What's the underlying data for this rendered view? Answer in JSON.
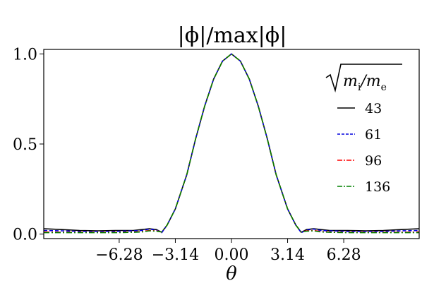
{
  "chart_data": {
    "type": "line",
    "title": "|ϕ|/max|ϕ|",
    "xlabel": "θ",
    "ylabel": "",
    "xlim": [
      -10.5,
      10.5
    ],
    "ylim": [
      -0.025,
      1.025
    ],
    "x_ticks": [
      {
        "value": -6.28,
        "label": "−6.28"
      },
      {
        "value": -3.14,
        "label": "−3.14"
      },
      {
        "value": 0.0,
        "label": "0.00"
      },
      {
        "value": 3.14,
        "label": "3.14"
      },
      {
        "value": 6.28,
        "label": "6.28"
      }
    ],
    "y_ticks": [
      {
        "value": 0.0,
        "label": "0.0"
      },
      {
        "value": 0.5,
        "label": "0.5"
      },
      {
        "value": 1.0,
        "label": "1.0"
      }
    ],
    "grid": false,
    "legend": {
      "title": "√(mi/me)",
      "placement": "right"
    },
    "series": [
      {
        "name": "43",
        "color": "#000000",
        "dash": "solid",
        "x": [
          -10.5,
          -9.5,
          -8.5,
          -7.5,
          -6.5,
          -5.5,
          -5.0,
          -4.6,
          -4.2,
          -3.9,
          -3.6,
          -3.14,
          -2.5,
          -2.0,
          -1.5,
          -1.0,
          -0.5,
          0.0,
          0.5,
          1.0,
          1.5,
          2.0,
          2.5,
          3.14,
          3.6,
          3.9,
          4.2,
          4.6,
          5.0,
          5.5,
          6.5,
          7.5,
          8.5,
          9.5,
          10.5
        ],
        "y": [
          0.03,
          0.025,
          0.02,
          0.018,
          0.02,
          0.02,
          0.025,
          0.03,
          0.025,
          0.01,
          0.05,
          0.14,
          0.33,
          0.53,
          0.71,
          0.86,
          0.96,
          1.0,
          0.96,
          0.86,
          0.71,
          0.53,
          0.33,
          0.14,
          0.05,
          0.01,
          0.025,
          0.03,
          0.025,
          0.02,
          0.02,
          0.018,
          0.02,
          0.025,
          0.03
        ]
      },
      {
        "name": "61",
        "color": "#0000dd",
        "dash": "dashed",
        "x": [
          -10.5,
          -9.5,
          -8.5,
          -7.5,
          -6.5,
          -5.5,
          -5.0,
          -4.6,
          -4.2,
          -3.9,
          -3.6,
          -3.14,
          -2.5,
          -2.0,
          -1.5,
          -1.0,
          -0.5,
          0.0,
          0.5,
          1.0,
          1.5,
          2.0,
          2.5,
          3.14,
          3.6,
          3.9,
          4.2,
          4.6,
          5.0,
          5.5,
          6.5,
          7.5,
          8.5,
          9.5,
          10.5
        ],
        "y": [
          0.02,
          0.018,
          0.015,
          0.015,
          0.015,
          0.018,
          0.02,
          0.028,
          0.022,
          0.008,
          0.05,
          0.14,
          0.33,
          0.53,
          0.71,
          0.86,
          0.96,
          1.0,
          0.96,
          0.86,
          0.71,
          0.53,
          0.33,
          0.14,
          0.05,
          0.008,
          0.022,
          0.028,
          0.02,
          0.018,
          0.015,
          0.015,
          0.015,
          0.018,
          0.02
        ]
      },
      {
        "name": "96",
        "color": "#ff0000",
        "dash": "dashdot",
        "x": [
          -10.5,
          -9.5,
          -8.5,
          -7.5,
          -6.5,
          -5.5,
          -5.0,
          -4.6,
          -4.2,
          -3.9,
          -3.6,
          -3.14,
          -2.5,
          -2.0,
          -1.5,
          -1.0,
          -0.5,
          0.0,
          0.5,
          1.0,
          1.5,
          2.0,
          2.5,
          3.14,
          3.6,
          3.9,
          4.2,
          4.6,
          5.0,
          5.5,
          6.5,
          7.5,
          8.5,
          9.5,
          10.5
        ],
        "y": [
          0.012,
          0.01,
          0.01,
          0.01,
          0.01,
          0.012,
          0.014,
          0.02,
          0.018,
          0.012,
          0.05,
          0.14,
          0.33,
          0.53,
          0.71,
          0.86,
          0.96,
          1.0,
          0.96,
          0.86,
          0.71,
          0.53,
          0.33,
          0.14,
          0.05,
          0.012,
          0.018,
          0.02,
          0.014,
          0.012,
          0.01,
          0.01,
          0.01,
          0.01,
          0.012
        ]
      },
      {
        "name": "136",
        "color": "#008000",
        "dash": "dashdot",
        "x": [
          -10.5,
          -9.5,
          -8.5,
          -7.5,
          -6.5,
          -5.5,
          -5.0,
          -4.6,
          -4.2,
          -3.9,
          -3.6,
          -3.14,
          -2.5,
          -2.0,
          -1.5,
          -1.0,
          -0.5,
          0.0,
          0.5,
          1.0,
          1.5,
          2.0,
          2.5,
          3.14,
          3.6,
          3.9,
          4.2,
          4.6,
          5.0,
          5.5,
          6.5,
          7.5,
          8.5,
          9.5,
          10.5
        ],
        "y": [
          0.008,
          0.008,
          0.008,
          0.008,
          0.008,
          0.01,
          0.012,
          0.018,
          0.016,
          0.012,
          0.05,
          0.14,
          0.33,
          0.53,
          0.71,
          0.86,
          0.96,
          1.0,
          0.96,
          0.86,
          0.71,
          0.53,
          0.33,
          0.14,
          0.05,
          0.012,
          0.016,
          0.018,
          0.012,
          0.01,
          0.008,
          0.008,
          0.008,
          0.008,
          0.008
        ]
      }
    ]
  }
}
